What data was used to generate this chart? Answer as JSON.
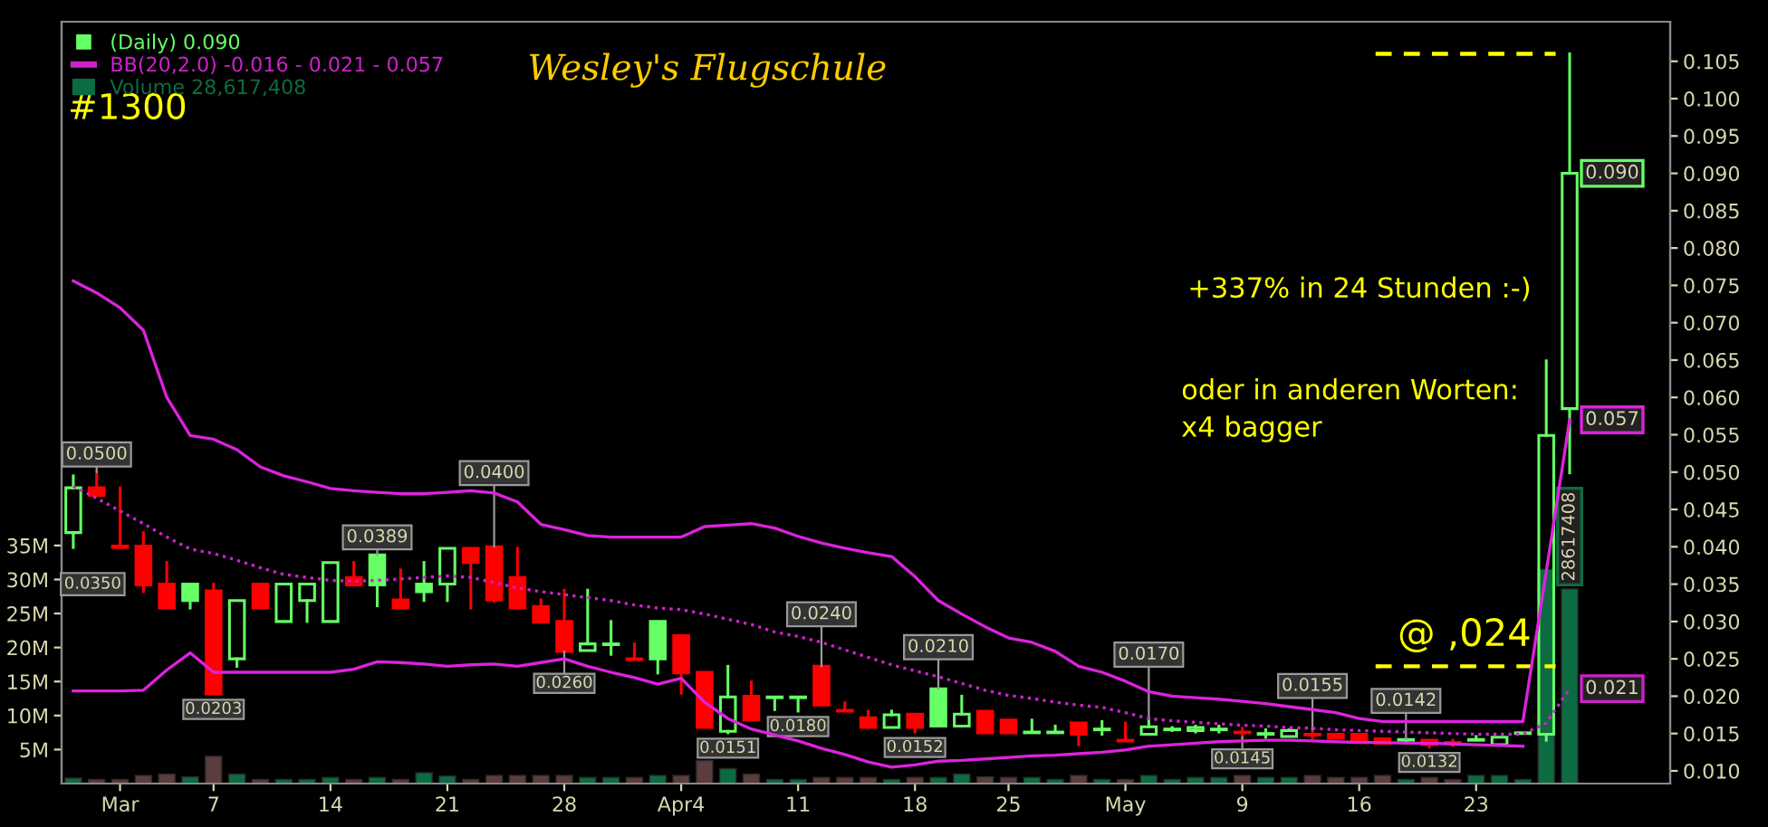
{
  "chart_data": {
    "type": "candlestick",
    "title": "Wesley's Flugschule",
    "legend": "top left",
    "categories": [
      null,
      null,
      "Mar",
      null,
      null,
      null,
      "7",
      null,
      null,
      null,
      null,
      "14",
      null,
      null,
      null,
      null,
      "21",
      null,
      null,
      null,
      null,
      "28",
      null,
      null,
      null,
      null,
      "Apr4",
      null,
      null,
      null,
      null,
      "11",
      null,
      null,
      null,
      null,
      "18",
      null,
      null,
      null,
      "25",
      null,
      null,
      null,
      null,
      "May",
      null,
      null,
      null,
      null,
      "9",
      null,
      null,
      null,
      null,
      "16",
      null,
      null,
      null,
      null,
      "23",
      null,
      null,
      null,
      null
    ],
    "ylim": [
      0.0083,
      0.1103
    ],
    "yticks": [
      {
        "value": 0.01,
        "label": "0.010"
      },
      {
        "value": 0.015,
        "label": "0.015"
      },
      {
        "value": 0.02,
        "label": "0.020"
      },
      {
        "value": 0.025,
        "label": "0.025"
      },
      {
        "value": 0.03,
        "label": "0.030"
      },
      {
        "value": 0.035,
        "label": "0.035"
      },
      {
        "value": 0.04,
        "label": "0.040"
      },
      {
        "value": 0.045,
        "label": "0.045"
      },
      {
        "value": 0.05,
        "label": "0.050"
      },
      {
        "value": 0.055,
        "label": "0.055"
      },
      {
        "value": 0.06,
        "label": "0.060"
      },
      {
        "value": 0.065,
        "label": "0.065"
      },
      {
        "value": 0.07,
        "label": "0.070"
      },
      {
        "value": 0.075,
        "label": "0.075"
      },
      {
        "value": 0.08,
        "label": "0.080"
      },
      {
        "value": 0.085,
        "label": "0.085"
      },
      {
        "value": 0.09,
        "label": "0.090"
      },
      {
        "value": 0.095,
        "label": "0.095"
      },
      {
        "value": 0.1,
        "label": "0.100"
      },
      {
        "value": 0.105,
        "label": "0.105"
      }
    ],
    "y2lim": [
      0,
      112000000
    ],
    "y2ticks": [
      {
        "value": 5000000,
        "label": "5M"
      },
      {
        "value": 10000000,
        "label": "10M"
      },
      {
        "value": 15000000,
        "label": "15M"
      },
      {
        "value": 20000000,
        "label": "20M"
      },
      {
        "value": 25000000,
        "label": "25M"
      },
      {
        "value": 30000000,
        "label": "30M"
      },
      {
        "value": 35000000,
        "label": "35M"
      }
    ],
    "series": [
      {
        "type": "candlestick",
        "name": "(Daily) 0.090",
        "color": "#66ff66",
        "ohlc": [
          [
            0.0419,
            0.0495,
            0.0399,
            0.0479
          ],
          [
            0.0479,
            0.05,
            0.0469,
            0.0469
          ],
          [
            0.0401,
            0.0479,
            0.0399,
            0.0399
          ],
          [
            0.0401,
            0.0419,
            0.034,
            0.0349
          ],
          [
            0.035,
            0.0379,
            0.0318,
            0.0318
          ],
          [
            0.035,
            0.035,
            0.0318,
            0.0328
          ],
          [
            0.0341,
            0.035,
            0.0203,
            0.0203
          ],
          [
            0.025,
            0.0328,
            0.024,
            0.0328
          ],
          [
            0.035,
            0.035,
            0.0318,
            0.0318
          ],
          [
            0.03,
            0.035,
            0.03,
            0.035
          ],
          [
            0.0328,
            0.035,
            0.03,
            0.035
          ],
          [
            0.03,
            0.0379,
            0.03,
            0.0379
          ],
          [
            0.0359,
            0.0379,
            0.0349,
            0.0349
          ],
          [
            0.0389,
            0.0389,
            0.0321,
            0.0349
          ],
          [
            0.0329,
            0.0369,
            0.0318,
            0.0318
          ],
          [
            0.035,
            0.0379,
            0.0328,
            0.034
          ],
          [
            0.035,
            0.0398,
            0.0328,
            0.0398
          ],
          [
            0.0398,
            0.0398,
            0.0318,
            0.0379
          ],
          [
            0.04,
            0.04,
            0.0327,
            0.0329
          ],
          [
            0.0359,
            0.0398,
            0.0318,
            0.0318
          ],
          [
            0.032,
            0.0329,
            0.0299,
            0.0299
          ],
          [
            0.03,
            0.0342,
            0.026,
            0.026
          ],
          [
            0.0261,
            0.0342,
            0.0261,
            0.027
          ],
          [
            0.0269,
            0.03,
            0.0256,
            0.027
          ],
          [
            0.025,
            0.027,
            0.0249,
            0.0249
          ],
          [
            0.03,
            0.03,
            0.0231,
            0.025
          ],
          [
            0.0281,
            0.0281,
            0.0204,
            0.0231
          ],
          [
            0.0232,
            0.0232,
            0.0158,
            0.0158
          ],
          [
            0.0153,
            0.024,
            0.0151,
            0.0199
          ],
          [
            0.02,
            0.0219,
            0.0168,
            0.0168
          ],
          [
            0.0198,
            0.0199,
            0.0182,
            0.0199
          ],
          [
            0.0198,
            0.0199,
            0.018,
            0.0199
          ],
          [
            0.024,
            0.024,
            0.0188,
            0.0188
          ],
          [
            0.0181,
            0.0191,
            0.018,
            0.018
          ],
          [
            0.0171,
            0.018,
            0.0158,
            0.0158
          ],
          [
            0.0158,
            0.018,
            0.0158,
            0.0175
          ],
          [
            0.0176,
            0.0176,
            0.0152,
            0.0158
          ],
          [
            0.021,
            0.021,
            0.016,
            0.016
          ],
          [
            0.016,
            0.02,
            0.016,
            0.0176
          ],
          [
            0.018,
            0.018,
            0.0151,
            0.0151
          ],
          [
            0.0168,
            0.0168,
            0.0151,
            0.0151
          ],
          [
            0.0151,
            0.0168,
            0.0151,
            0.0152
          ],
          [
            0.0151,
            0.016,
            0.0151,
            0.0152
          ],
          [
            0.0164,
            0.0164,
            0.0135,
            0.0149
          ],
          [
            0.0155,
            0.0166,
            0.0149,
            0.0156
          ],
          [
            0.0141,
            0.0164,
            0.014,
            0.014
          ],
          [
            0.0149,
            0.017,
            0.0149,
            0.0159
          ],
          [
            0.0155,
            0.0158,
            0.0154,
            0.0156
          ],
          [
            0.0154,
            0.016,
            0.0152,
            0.0158
          ],
          [
            0.0155,
            0.016,
            0.0152,
            0.0156
          ],
          [
            0.0152,
            0.0157,
            0.0145,
            0.0151
          ],
          [
            0.0149,
            0.0155,
            0.0145,
            0.015
          ],
          [
            0.0146,
            0.0155,
            0.0146,
            0.0154
          ],
          [
            0.0149,
            0.0155,
            0.0144,
            0.0148
          ],
          [
            0.0149,
            0.0149,
            0.0144,
            0.0144
          ],
          [
            0.0149,
            0.0149,
            0.0139,
            0.0139
          ],
          [
            0.0143,
            0.0143,
            0.0137,
            0.0137
          ],
          [
            0.0141,
            0.0142,
            0.0138,
            0.0142
          ],
          [
            0.0135,
            0.0141,
            0.0132,
            0.0141
          ],
          [
            0.0138,
            0.0141,
            0.0134,
            0.0137
          ],
          [
            0.0141,
            0.0146,
            0.0141,
            0.0142
          ],
          [
            0.0135,
            0.0145,
            0.0135,
            0.0145
          ],
          [
            0.015,
            0.0151,
            0.015,
            0.0151
          ],
          [
            0.0149,
            0.0649,
            0.0141,
            0.0549
          ],
          [
            0.0585,
            0.106,
            0.0499,
            0.09
          ]
        ],
        "colors": [
          "#66ff66",
          "#ff0000",
          "#ff0000",
          "#ff0000",
          "#ff0000",
          "#66ff66",
          "#ff0000",
          "#66ff66",
          "#ff0000",
          "#66ff66",
          "#66ff66",
          "#66ff66",
          "#ff0000",
          "#66ff66",
          "#ff0000",
          "#66ff66",
          "#66ff66",
          "#ff0000",
          "#ff0000",
          "#ff0000",
          "#ff0000",
          "#ff0000",
          "#66ff66",
          "#66ff66",
          "#ff0000",
          "#66ff66",
          "#ff0000",
          "#ff0000",
          "#66ff66",
          "#ff0000",
          "#66ff66",
          "#66ff66",
          "#ff0000",
          "#ff0000",
          "#ff0000",
          "#66ff66",
          "#ff0000",
          "#66ff66",
          "#66ff66",
          "#ff0000",
          "#ff0000",
          "#66ff66",
          "#66ff66",
          "#ff0000",
          "#66ff66",
          "#ff0000",
          "#66ff66",
          "#66ff66",
          "#66ff66",
          "#66ff66",
          "#ff0000",
          "#66ff66",
          "#66ff66",
          "#ff0000",
          "#ff0000",
          "#ff0000",
          "#ff0000",
          "#66ff66",
          "#ff0000",
          "#ff0000",
          "#66ff66",
          "#66ff66",
          "#66ff66",
          "#66ff66",
          "#66ff66"
        ],
        "value_labels": [
          null,
          "0.0500",
          null,
          null,
          null,
          null,
          "0.0203",
          null,
          null,
          null,
          null,
          null,
          null,
          "0.0389",
          null,
          null,
          null,
          null,
          "0.0400",
          null,
          null,
          "0.0260",
          null,
          null,
          null,
          null,
          null,
          null,
          "0.0151",
          null,
          null,
          "0.0180",
          "0.0240",
          null,
          null,
          null,
          "0.0152",
          "0.0210",
          null,
          null,
          null,
          null,
          null,
          null,
          null,
          null,
          "0.0170",
          null,
          null,
          null,
          "0.0145",
          null,
          null,
          "0.0155",
          null,
          null,
          null,
          "0.0142",
          "0.0132",
          null,
          null,
          null,
          null,
          null,
          "0.090"
        ]
      },
      {
        "type": "line",
        "color": "#dd22dd",
        "line_style": "solid",
        "values": [
          0.0756,
          0.074,
          0.072,
          0.069,
          0.06,
          0.0549,
          0.0544,
          0.053,
          0.0507,
          0.0495,
          0.0487,
          0.0478,
          0.0475,
          0.0473,
          0.0471,
          0.0471,
          0.0473,
          0.0475,
          0.0472,
          0.046,
          0.043,
          0.0423,
          0.0415,
          0.0413,
          0.0413,
          0.0413,
          0.0413,
          0.0427,
          0.0429,
          0.0431,
          0.0425,
          0.0414,
          0.0405,
          0.0398,
          0.0392,
          0.0387,
          0.036,
          0.0328,
          0.031,
          0.0293,
          0.0278,
          0.0272,
          0.026,
          0.024,
          0.0232,
          0.022,
          0.0206,
          0.02,
          0.0198,
          0.0196,
          0.0193,
          0.019,
          0.0186,
          0.0182,
          0.0178,
          0.017,
          0.0166,
          0.0166,
          0.0166,
          0.0166,
          0.0166,
          0.0166,
          0.0166,
          0.0367,
          0.057
        ],
        "value_labels": [
          null,
          null,
          null,
          null,
          null,
          null,
          null,
          null,
          null,
          null,
          null,
          null,
          null,
          null,
          null,
          null,
          null,
          null,
          null,
          null,
          null,
          null,
          null,
          null,
          null,
          null,
          null,
          null,
          null,
          null,
          null,
          null,
          null,
          null,
          null,
          null,
          null,
          null,
          null,
          null,
          null,
          null,
          null,
          null,
          null,
          null,
          null,
          null,
          null,
          null,
          null,
          null,
          null,
          null,
          null,
          null,
          null,
          null,
          null,
          null,
          null,
          null,
          null,
          null,
          "0.057"
        ]
      },
      {
        "type": "line",
        "name": "BB(20,2.0) -0.016 - 0.021 - 0.057",
        "color": "#cc22cc",
        "line_style": "dotted",
        "values": [
          0.0481,
          0.0465,
          0.0448,
          0.0431,
          0.0413,
          0.0397,
          0.0391,
          0.0382,
          0.0372,
          0.0363,
          0.0359,
          0.0355,
          0.0354,
          0.0355,
          0.0357,
          0.0359,
          0.0361,
          0.0359,
          0.0352,
          0.0345,
          0.034,
          0.0336,
          0.0332,
          0.0328,
          0.0322,
          0.0318,
          0.0316,
          0.031,
          0.0303,
          0.0296,
          0.0286,
          0.028,
          0.0272,
          0.0262,
          0.0252,
          0.0242,
          0.0234,
          0.0226,
          0.0217,
          0.0208,
          0.0201,
          0.0197,
          0.0192,
          0.0188,
          0.0185,
          0.0178,
          0.017,
          0.0167,
          0.0165,
          0.0163,
          0.0161,
          0.016,
          0.0158,
          0.0157,
          0.0155,
          0.0154,
          0.0153,
          0.0152,
          0.0151,
          0.015,
          0.0149,
          0.0149,
          0.0149,
          0.0164,
          0.021
        ],
        "value_labels": [
          null,
          null,
          null,
          null,
          null,
          null,
          null,
          null,
          null,
          null,
          null,
          null,
          null,
          null,
          null,
          null,
          null,
          null,
          null,
          null,
          null,
          null,
          null,
          null,
          null,
          null,
          null,
          null,
          null,
          null,
          null,
          null,
          null,
          null,
          null,
          null,
          null,
          null,
          null,
          null,
          null,
          null,
          null,
          null,
          null,
          null,
          null,
          null,
          null,
          null,
          null,
          null,
          null,
          null,
          null,
          null,
          null,
          null,
          null,
          null,
          null,
          null,
          null,
          null,
          "0.021"
        ]
      },
      {
        "type": "line",
        "color": "#dd22dd",
        "line_style": "solid",
        "values": [
          0.0207,
          0.0207,
          0.0207,
          0.0208,
          0.0235,
          0.0258,
          0.0232,
          0.0232,
          0.0232,
          0.0232,
          0.0232,
          0.0232,
          0.0236,
          0.0246,
          0.0245,
          0.0243,
          0.024,
          0.0242,
          0.0243,
          0.024,
          0.0245,
          0.025,
          0.024,
          0.0232,
          0.0225,
          0.0216,
          0.0224,
          0.0192,
          0.017,
          0.0156,
          0.0148,
          0.014,
          0.013,
          0.0122,
          0.0112,
          0.0105,
          0.0108,
          0.0113,
          0.0114,
          0.0116,
          0.0118,
          0.012,
          0.0121,
          0.0123,
          0.0125,
          0.0128,
          0.0133,
          0.0135,
          0.0137,
          0.0139,
          0.014,
          0.0141,
          0.0141,
          0.014,
          0.0139,
          0.0138,
          0.0138,
          0.0137,
          0.0137,
          0.0136,
          0.0135,
          0.0134,
          0.0133,
          null,
          null
        ]
      },
      {
        "type": "bar",
        "axis": "y2",
        "name": "Volume 28,617,408",
        "color": "#0d6b42",
        "values": [
          800000,
          600000,
          600000,
          1200000,
          1400000,
          1000000,
          4000000,
          1400000,
          600000,
          600000,
          600000,
          900000,
          600000,
          900000,
          600000,
          1600000,
          1100000,
          600000,
          1200000,
          1200000,
          1200000,
          1200000,
          900000,
          900000,
          900000,
          1200000,
          1200000,
          3400000,
          2200000,
          1400000,
          600000,
          600000,
          900000,
          900000,
          900000,
          600000,
          900000,
          900000,
          1400000,
          1000000,
          900000,
          900000,
          600000,
          1200000,
          600000,
          600000,
          1200000,
          600000,
          900000,
          900000,
          1200000,
          900000,
          900000,
          1200000,
          900000,
          900000,
          1200000,
          600000,
          900000,
          600000,
          1200000,
          1200000,
          600000,
          31500000,
          28617408
        ],
        "colors": [
          "#0d6b42",
          "#5c3c3c",
          "#5c3c3c",
          "#5c3c3c",
          "#5c3c3c",
          "#0d6b42",
          "#5c3c3c",
          "#0d6b42",
          "#5c3c3c",
          "#0d6b42",
          "#0d6b42",
          "#0d6b42",
          "#5c3c3c",
          "#0d6b42",
          "#5c3c3c",
          "#0d6b42",
          "#0d6b42",
          "#5c3c3c",
          "#5c3c3c",
          "#5c3c3c",
          "#5c3c3c",
          "#5c3c3c",
          "#0d6b42",
          "#0d6b42",
          "#5c3c3c",
          "#0d6b42",
          "#5c3c3c",
          "#5c3c3c",
          "#0d6b42",
          "#5c3c3c",
          "#0d6b42",
          "#0d6b42",
          "#5c3c3c",
          "#5c3c3c",
          "#5c3c3c",
          "#0d6b42",
          "#5c3c3c",
          "#0d6b42",
          "#0d6b42",
          "#5c3c3c",
          "#5c3c3c",
          "#0d6b42",
          "#0d6b42",
          "#5c3c3c",
          "#0d6b42",
          "#5c3c3c",
          "#0d6b42",
          "#0d6b42",
          "#0d6b42",
          "#0d6b42",
          "#5c3c3c",
          "#0d6b42",
          "#0d6b42",
          "#5c3c3c",
          "#5c3c3c",
          "#5c3c3c",
          "#5c3c3c",
          "#0d6b42",
          "#5c3c3c",
          "#5c3c3c",
          "#0d6b42",
          "#0d6b42",
          "#0d6b42",
          "#0d6b42",
          "#0d6b42"
        ],
        "value_labels": [
          null,
          null,
          null,
          null,
          null,
          null,
          null,
          null,
          null,
          null,
          null,
          null,
          null,
          null,
          null,
          null,
          null,
          null,
          null,
          null,
          null,
          null,
          null,
          null,
          null,
          null,
          null,
          null,
          null,
          null,
          null,
          null,
          null,
          null,
          null,
          null,
          null,
          null,
          null,
          null,
          null,
          null,
          null,
          null,
          null,
          null,
          null,
          null,
          null,
          null,
          null,
          null,
          null,
          null,
          null,
          null,
          null,
          null,
          null,
          null,
          null,
          null,
          null,
          null,
          "28617408"
        ]
      }
    ],
    "ref_lines": [
      {
        "axis": "y",
        "value": 0.024,
        "label": "@ ,024",
        "color": "#ffff00",
        "line_style": "dashed"
      },
      {
        "axis": "y",
        "value": 0.106,
        "color": "#ffff00",
        "line_style": "dashed"
      }
    ],
    "annotations": [
      "#1300",
      "+337% in 24 Stunden :-)",
      "oder in anderen Worten:\nx4 bagger",
      {
        "text": "0.0350",
        "y": 0.035
      }
    ]
  }
}
